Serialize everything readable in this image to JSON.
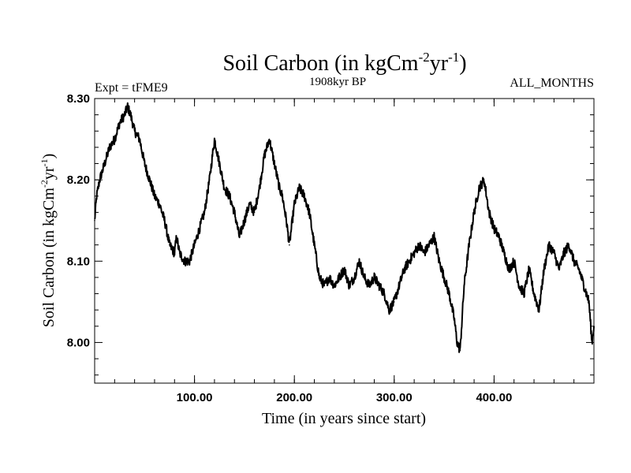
{
  "header": {
    "title_main": "Soil Carbon (in kgCm",
    "title_sup1": "-2",
    "title_mid": "yr",
    "title_sup2": "-1",
    "title_end": ")",
    "experiment": "Expt = tFME9",
    "period": "1908kyr BP",
    "months": "ALL_MONTHS"
  },
  "axes": {
    "xlabel": "Time (in years since start)",
    "ylabel_main": "Soil Carbon (in kgCm",
    "ylabel_sup1": "-2",
    "ylabel_mid": "yr",
    "ylabel_sup2": "-1",
    "ylabel_end": ")"
  },
  "colors": {
    "line": "#000000",
    "axis": "#000000",
    "background": "#ffffff"
  },
  "chart_data": {
    "type": "line",
    "xlim": [
      0,
      500
    ],
    "ylim": [
      7.95,
      8.3
    ],
    "x_ticks": [
      100,
      200,
      300,
      400
    ],
    "x_tick_labels": [
      "100.00",
      "200.00",
      "300.00",
      "400.00"
    ],
    "y_ticks": [
      8.0,
      8.1,
      8.2,
      8.3
    ],
    "y_tick_labels": [
      "8.00",
      "8.10",
      "8.20",
      "8.30"
    ],
    "grid": false,
    "legend": "none",
    "series": [
      {
        "x": [
          0,
          2,
          5,
          10,
          15,
          20,
          25,
          30,
          33,
          36,
          40,
          45,
          50,
          55,
          60,
          65,
          70,
          75,
          80,
          82,
          85,
          90,
          95,
          100,
          105,
          110,
          115,
          120,
          125,
          130,
          135,
          140,
          145,
          150,
          155,
          160,
          165,
          170,
          175,
          180,
          185,
          188,
          192,
          195,
          200,
          205,
          210,
          215,
          220,
          225,
          230,
          235,
          240,
          245,
          250,
          255,
          260,
          265,
          270,
          275,
          280,
          285,
          290,
          295,
          300,
          305,
          310,
          315,
          320,
          325,
          330,
          335,
          340,
          345,
          350,
          355,
          360,
          363,
          366,
          370,
          375,
          380,
          385,
          390,
          395,
          400,
          405,
          410,
          415,
          420,
          425,
          430,
          435,
          440,
          445,
          450,
          455,
          460,
          465,
          470,
          475,
          480,
          485,
          490,
          495,
          498,
          500
        ],
        "y": [
          8.15,
          8.18,
          8.2,
          8.22,
          8.24,
          8.25,
          8.27,
          8.28,
          8.29,
          8.28,
          8.26,
          8.25,
          8.22,
          8.2,
          8.18,
          8.17,
          8.15,
          8.12,
          8.11,
          8.13,
          8.11,
          8.1,
          8.1,
          8.12,
          8.14,
          8.16,
          8.2,
          8.25,
          8.22,
          8.19,
          8.18,
          8.16,
          8.13,
          8.15,
          8.17,
          8.16,
          8.19,
          8.23,
          8.25,
          8.22,
          8.19,
          8.18,
          8.15,
          8.12,
          8.17,
          8.19,
          8.18,
          8.16,
          8.12,
          8.08,
          8.07,
          8.08,
          8.07,
          8.08,
          8.09,
          8.07,
          8.08,
          8.1,
          8.08,
          8.07,
          8.08,
          8.07,
          8.06,
          8.04,
          8.05,
          8.07,
          8.09,
          8.1,
          8.11,
          8.12,
          8.11,
          8.12,
          8.13,
          8.1,
          8.08,
          8.06,
          8.03,
          8.0,
          7.99,
          8.07,
          8.12,
          8.16,
          8.19,
          8.2,
          8.16,
          8.14,
          8.13,
          8.11,
          8.09,
          8.1,
          8.07,
          8.06,
          8.09,
          8.06,
          8.04,
          8.09,
          8.12,
          8.11,
          8.09,
          8.11,
          8.12,
          8.1,
          8.09,
          8.07,
          8.05,
          8.0,
          8.02
        ]
      }
    ]
  }
}
